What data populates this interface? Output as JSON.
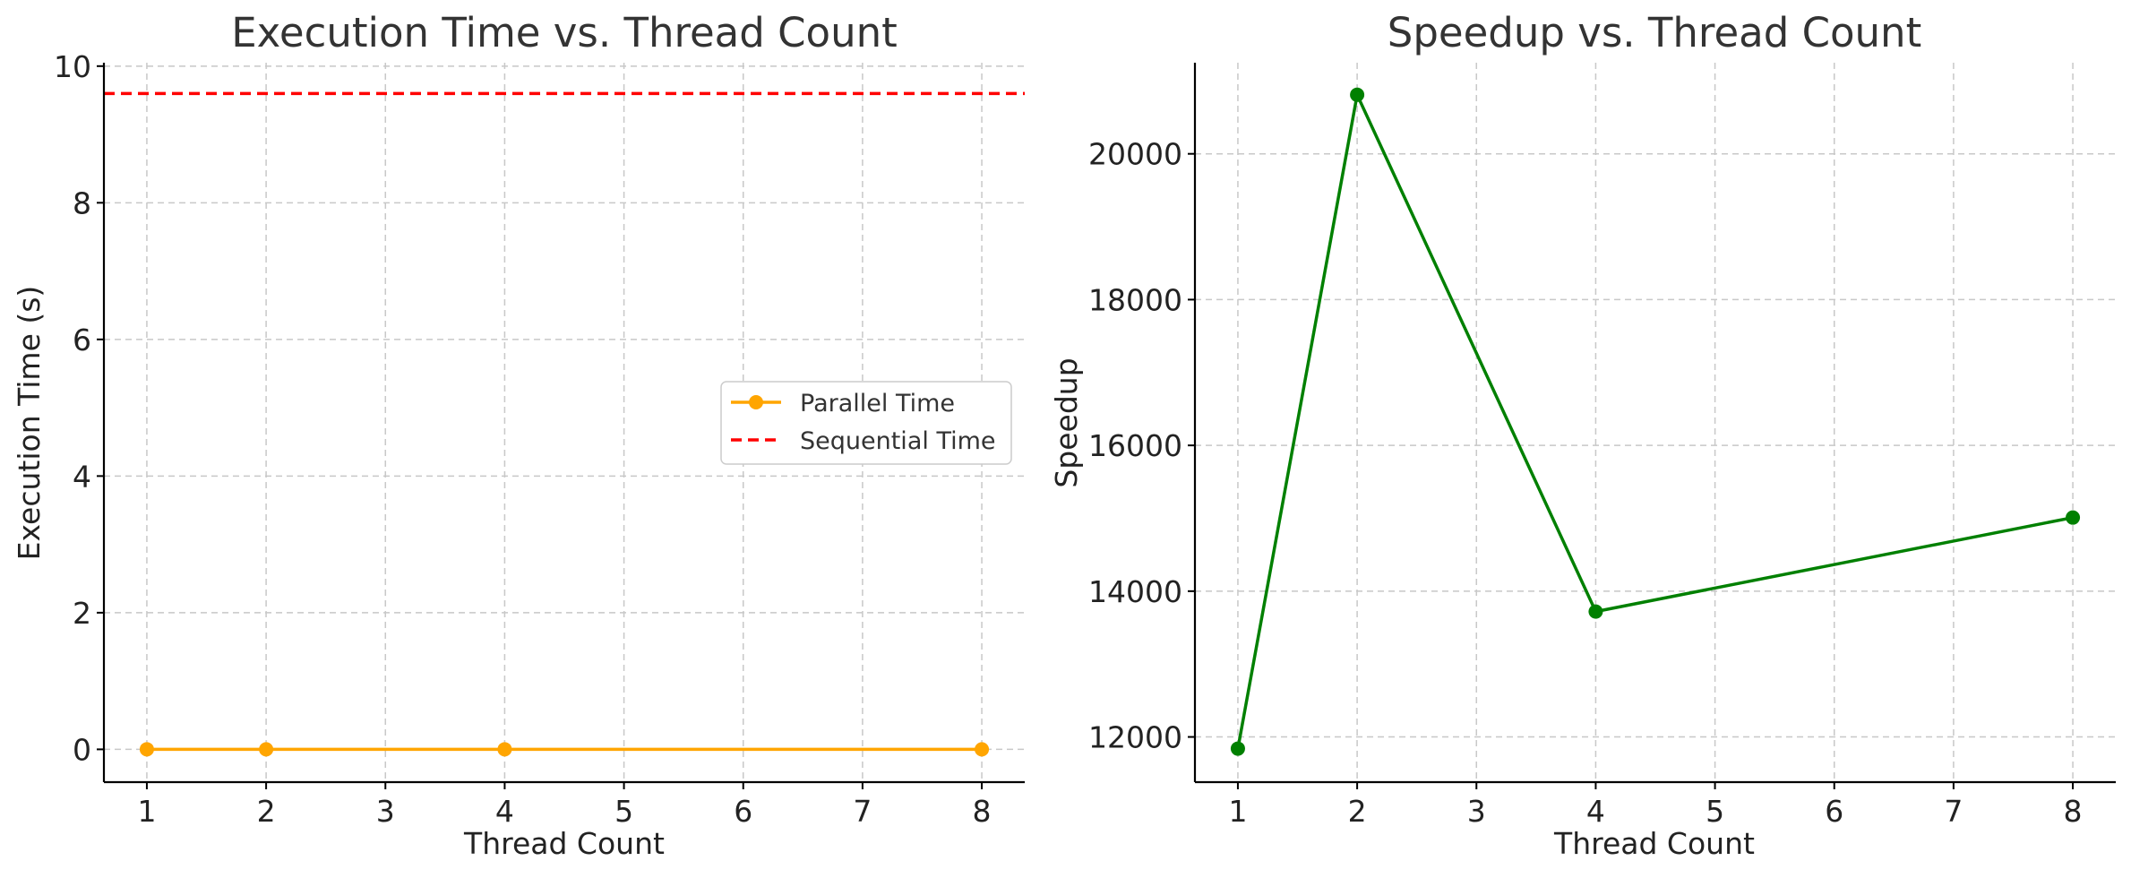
{
  "chart_data": [
    {
      "type": "line",
      "title": "Execution Time vs. Thread Count",
      "xlabel": "Thread Count",
      "ylabel": "Execution Time (s)",
      "xlim": [
        0.64,
        8.36
      ],
      "ylim": [
        -0.48,
        10.05
      ],
      "xticks": [
        1,
        2,
        3,
        4,
        5,
        6,
        7,
        8
      ],
      "yticks": [
        0,
        2,
        4,
        6,
        8,
        10
      ],
      "grid": true,
      "legend": {
        "position": "center-right"
      },
      "series": [
        {
          "name": "Parallel Time",
          "x": [
            1,
            2,
            4,
            8
          ],
          "y": [
            0.0008,
            0.0005,
            0.0007,
            0.0006
          ],
          "color": "#FFA500",
          "style": "solid",
          "marker": "circle"
        }
      ],
      "hlines": [
        {
          "name": "Sequential Time",
          "y": 9.6,
          "color": "#FF0000",
          "style": "dashed"
        }
      ]
    },
    {
      "type": "line",
      "title": "Speedup vs. Thread Count",
      "xlabel": "Thread Count",
      "ylabel": "Speedup",
      "xlim": [
        0.64,
        8.36
      ],
      "ylim": [
        11380,
        21250
      ],
      "xticks": [
        1,
        2,
        3,
        4,
        5,
        6,
        7,
        8
      ],
      "yticks": [
        12000,
        14000,
        16000,
        18000,
        20000
      ],
      "grid": true,
      "series": [
        {
          "x": [
            1,
            2,
            4,
            8
          ],
          "y": [
            11840,
            20810,
            13720,
            15010
          ],
          "color": "#008000",
          "style": "solid",
          "marker": "circle"
        }
      ]
    }
  ]
}
